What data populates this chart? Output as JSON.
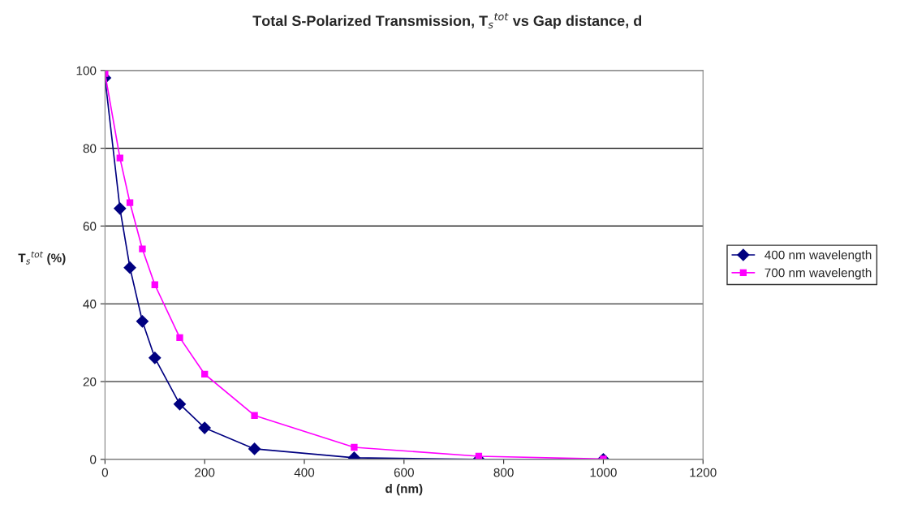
{
  "chart_data": {
    "type": "line",
    "title": "Total S-Polarized Transmission, T$_{s}$$^{tot}$ vs Gap distance, d",
    "xlabel": "d (nm)",
    "ylabel": "T$_{s}$$^{tot}$ (%)",
    "x": [
      0,
      30,
      50,
      75,
      100,
      150,
      200,
      300,
      500,
      750,
      1000
    ],
    "series": [
      {
        "name": "400 nm wavelength",
        "color": "#000080",
        "marker": "diamond",
        "values": [
          98.1,
          64.5,
          49.3,
          35.5,
          26.1,
          14.2,
          8.1,
          2.7,
          0.4,
          0,
          0
        ]
      },
      {
        "name": "700 nm wavelength",
        "color": "#ff00ff",
        "marker": "square",
        "values": [
          99.2,
          77.5,
          66,
          54.1,
          44.9,
          31.3,
          21.9,
          11.3,
          3.1,
          0.8,
          0.1
        ]
      }
    ],
    "xlim": [
      0,
      1200
    ],
    "xticks": [
      0,
      200,
      400,
      600,
      800,
      1000,
      1200
    ],
    "ylim": [
      0,
      100
    ],
    "yticks": [
      0,
      20,
      40,
      60,
      80,
      100
    ],
    "grid": "y",
    "legend": "right",
    "line_style": "solid"
  }
}
